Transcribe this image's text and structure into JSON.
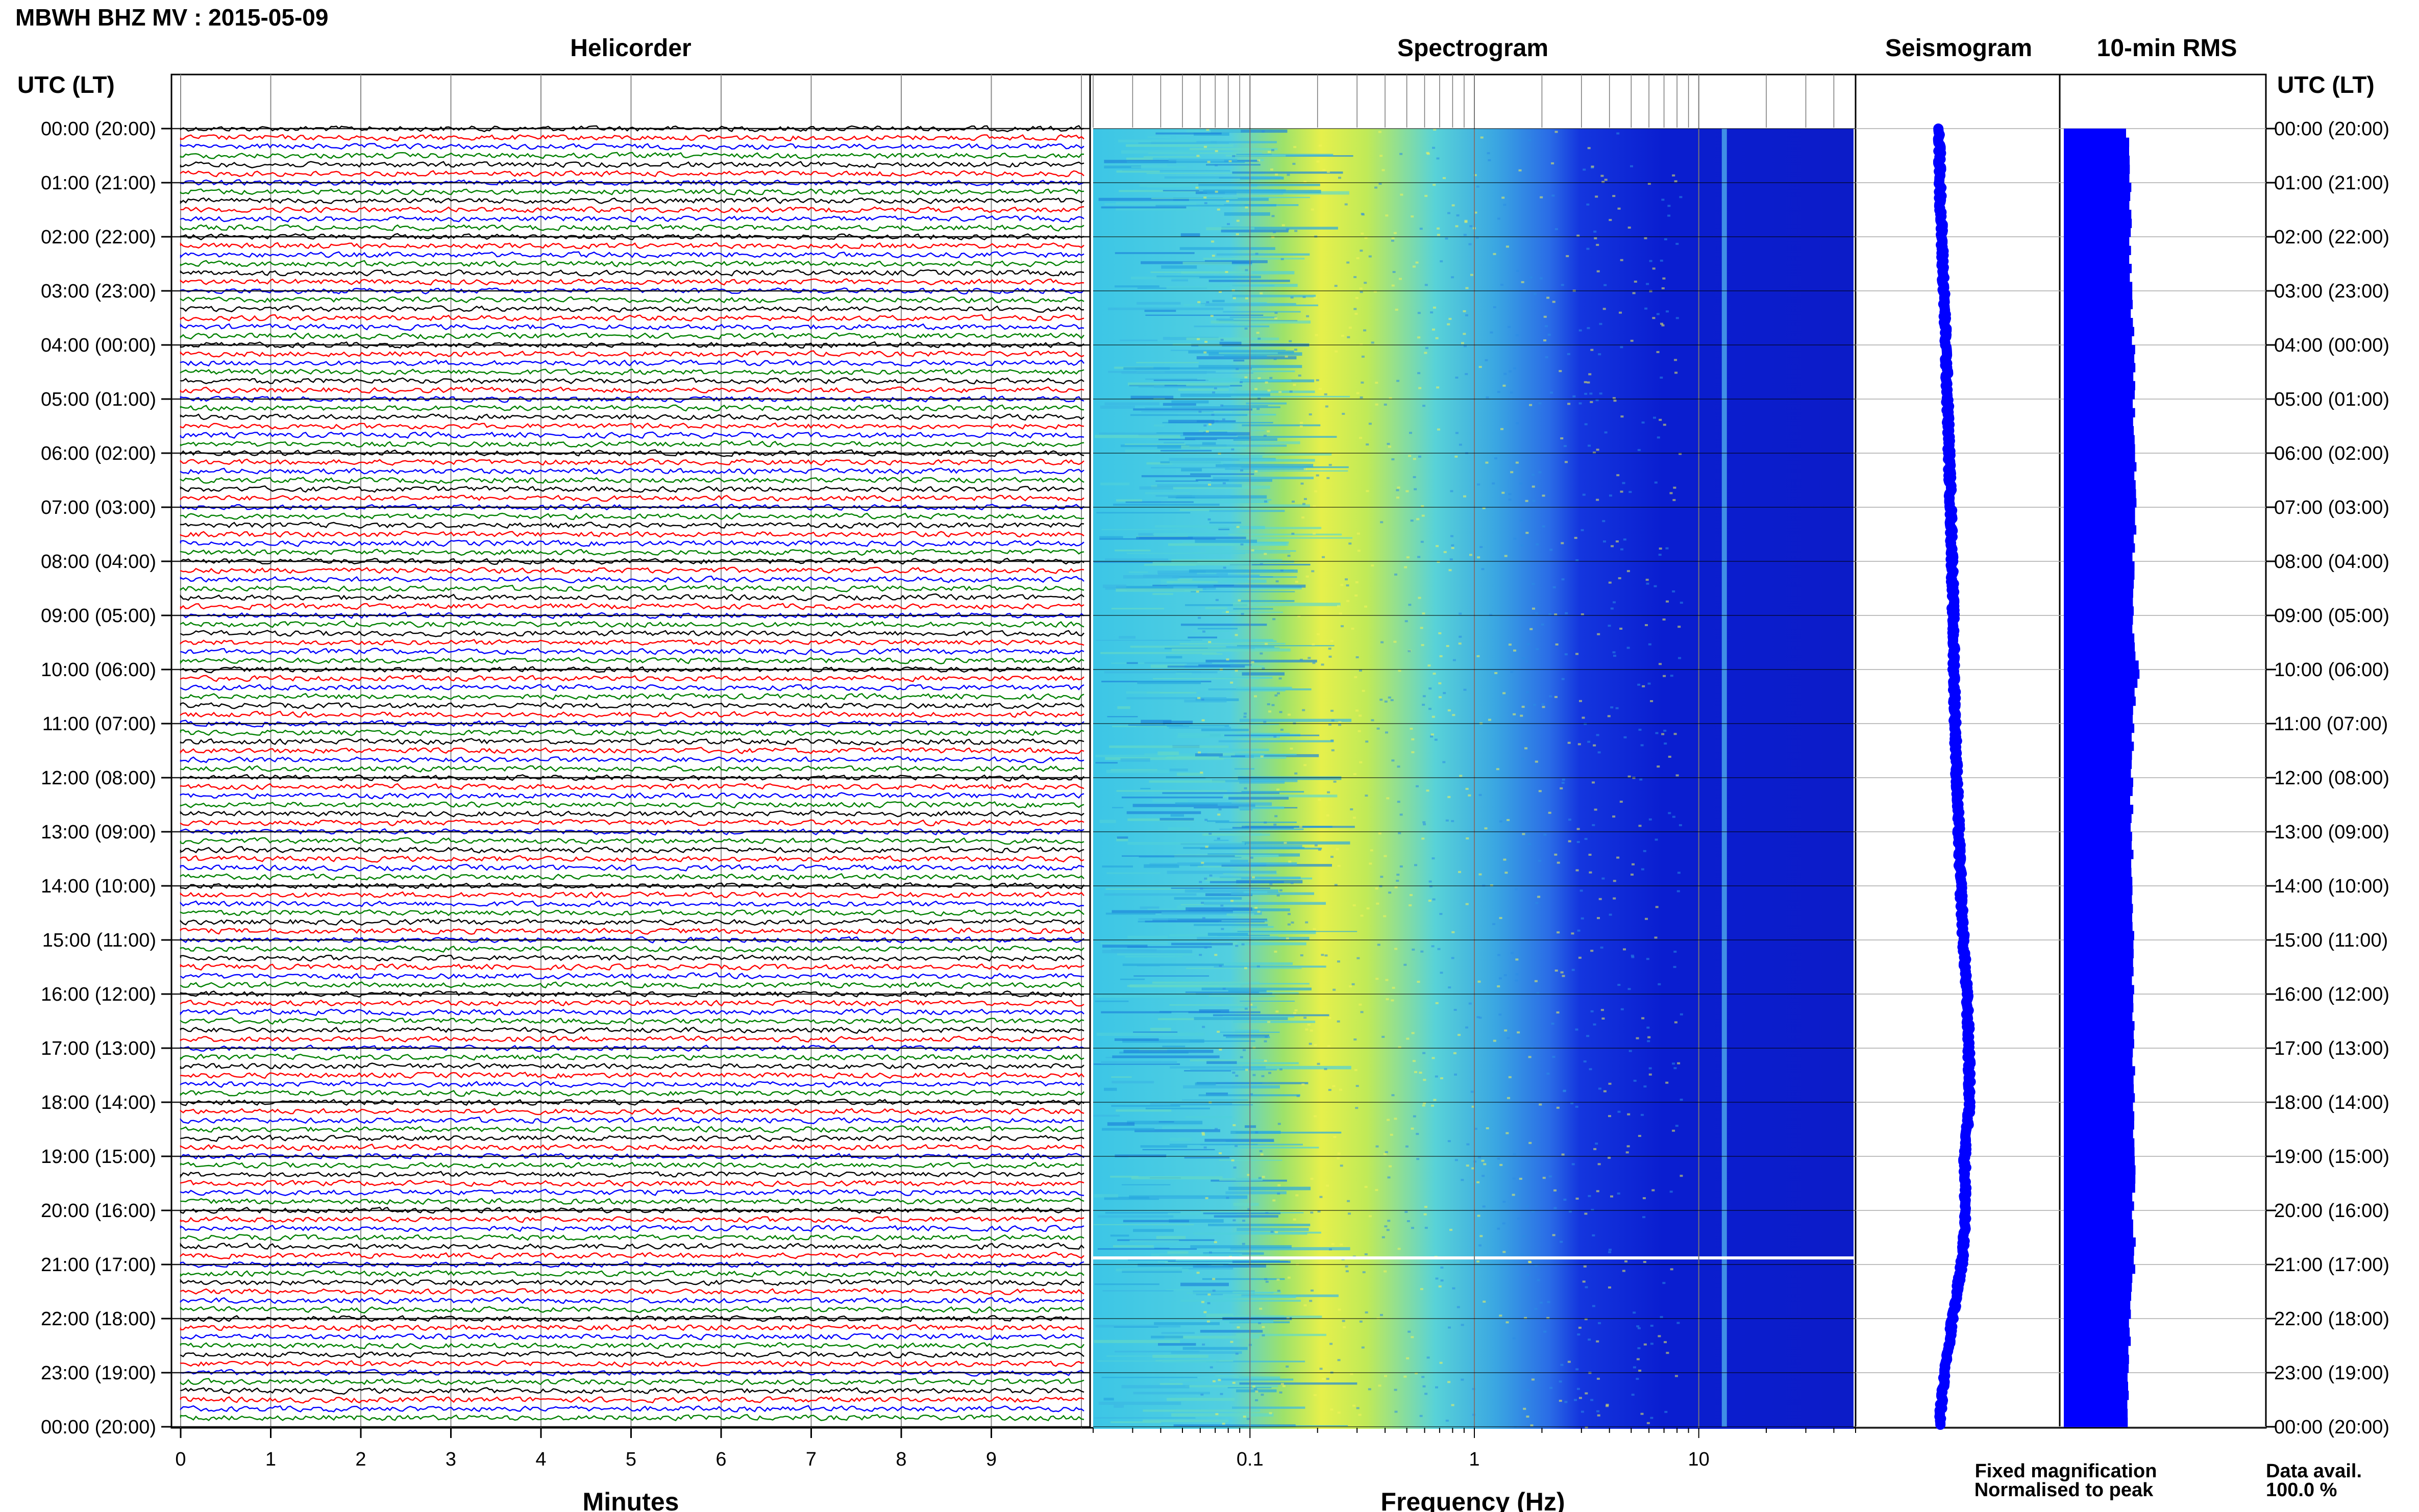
{
  "title": "MBWH BHZ MV : 2015-05-09",
  "left_axis_label": "UTC (LT)",
  "right_axis_label": "UTC (LT)",
  "panels": {
    "helicorder": "Helicorder",
    "spectrogram": "Spectrogram",
    "seismogram": "Seismogram",
    "rms": "10-min RMS"
  },
  "time_labels": [
    "00:00 (20:00)",
    "01:00 (21:00)",
    "02:00 (22:00)",
    "03:00 (23:00)",
    "04:00 (00:00)",
    "05:00 (01:00)",
    "06:00 (02:00)",
    "07:00 (03:00)",
    "08:00 (04:00)",
    "09:00 (05:00)",
    "10:00 (06:00)",
    "11:00 (07:00)",
    "12:00 (08:00)",
    "13:00 (09:00)",
    "14:00 (10:00)",
    "15:00 (11:00)",
    "16:00 (12:00)",
    "17:00 (13:00)",
    "18:00 (14:00)",
    "19:00 (15:00)",
    "20:00 (16:00)",
    "21:00 (17:00)",
    "22:00 (18:00)",
    "23:00 (19:00)",
    "00:00 (20:00)"
  ],
  "legend": {
    "fixed": "Fixed magnification",
    "fixed_color": "#0000ff",
    "normalised": "Normalised to peak",
    "normalised_color": "#ff0000"
  },
  "data_availability": {
    "label": "Data avail.",
    "value": "100.0 %"
  },
  "chart_data": [
    {
      "type": "line",
      "panel": "Helicorder",
      "xlabel": "Minutes",
      "x_ticks": [
        "0",
        "1",
        "2",
        "3",
        "4",
        "5",
        "6",
        "7",
        "8",
        "9"
      ],
      "xlim": [
        0,
        10
      ],
      "rows": 144,
      "row_minutes": 10,
      "trace_colors": [
        "#000000",
        "#ff0000",
        "#0000ff",
        "#008000"
      ]
    },
    {
      "type": "heatmap",
      "panel": "Spectrogram",
      "xlabel": "Frequency (Hz)",
      "x_scale": "log",
      "x_ticks": [
        "0.1",
        "1",
        "10"
      ],
      "xlim": [
        0.02,
        50
      ],
      "colormap": [
        "#3ec8e8",
        "#e8f04a",
        "#3ea8e0",
        "#1430e0",
        "#0010b8"
      ],
      "features": {
        "peak_band_hz": 0.28,
        "narrow_line_hz": 13
      }
    },
    {
      "type": "line",
      "panel": "Seismogram",
      "color": "#0000ff",
      "offset_profile": [
        0,
        0.3,
        1.2,
        2.2,
        3.2,
        4.0,
        4.8,
        5.6,
        6.3,
        6.8,
        7.2,
        7.8,
        8.6,
        9.5,
        10.5,
        11.8,
        13.5,
        14.5,
        14.8,
        12.5,
        12.8,
        11.0,
        6.5,
        2.5,
        0
      ]
    },
    {
      "type": "bar",
      "panel": "10-min RMS",
      "color": "#0000ff",
      "orientation": "horizontal",
      "profile": [
        0.88,
        0.92,
        0.91,
        0.94,
        0.96,
        0.97,
        1.0,
        0.99,
        0.96,
        0.95,
        1.02,
        0.96,
        0.94,
        0.93,
        0.96,
        0.97,
        0.95,
        0.96,
        0.97,
        0.99,
        0.96,
        0.98,
        0.92,
        0.9,
        0.9
      ]
    }
  ]
}
